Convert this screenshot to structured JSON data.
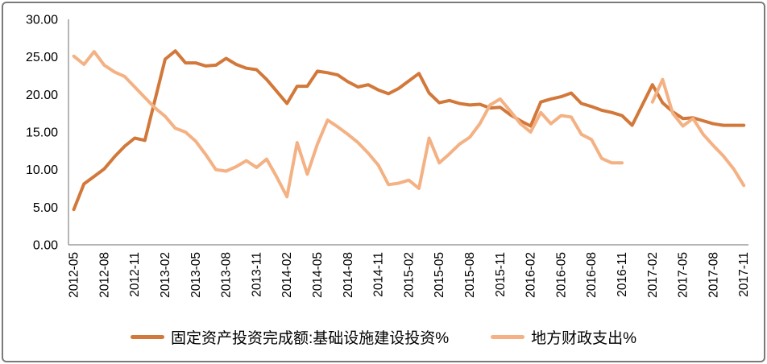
{
  "chart_data": {
    "type": "line",
    "title": "",
    "grid": false,
    "legend_position": "bottom",
    "ylim": [
      0,
      30
    ],
    "y_ticks": [
      "0.00",
      "5.00",
      "10.00",
      "15.00",
      "20.00",
      "25.00",
      "30.00"
    ],
    "x_tick_every": 3,
    "x": [
      "2012-05",
      "2012-06",
      "2012-07",
      "2012-08",
      "2012-09",
      "2012-10",
      "2012-11",
      "2012-12",
      "2013-01",
      "2013-02",
      "2013-03",
      "2013-04",
      "2013-05",
      "2013-06",
      "2013-07",
      "2013-08",
      "2013-09",
      "2013-10",
      "2013-11",
      "2013-12",
      "2014-01",
      "2014-02",
      "2014-03",
      "2014-04",
      "2014-05",
      "2014-06",
      "2014-07",
      "2014-08",
      "2014-09",
      "2014-10",
      "2014-11",
      "2014-12",
      "2015-01",
      "2015-02",
      "2015-03",
      "2015-04",
      "2015-05",
      "2015-06",
      "2015-07",
      "2015-08",
      "2015-09",
      "2015-10",
      "2015-11",
      "2015-12",
      "2016-01",
      "2016-02",
      "2016-03",
      "2016-04",
      "2016-05",
      "2016-06",
      "2016-07",
      "2016-08",
      "2016-09",
      "2016-10",
      "2016-11",
      "2016-12",
      "2017-01",
      "2017-02",
      "2017-03",
      "2017-04",
      "2017-05",
      "2017-06",
      "2017-07",
      "2017-08",
      "2017-09",
      "2017-10",
      "2017-11"
    ],
    "series": [
      {
        "name": "固定资产投资完成额:基础设施建设投资%",
        "color": "#D2783A",
        "values": [
          4.7,
          8.1,
          9.1,
          10.1,
          11.7,
          13.1,
          14.2,
          13.9,
          19.3,
          24.7,
          25.8,
          24.2,
          24.2,
          23.8,
          23.9,
          24.8,
          24.0,
          23.5,
          23.3,
          22.0,
          20.4,
          18.8,
          21.1,
          21.1,
          23.1,
          22.9,
          22.6,
          21.7,
          21.0,
          21.3,
          20.6,
          20.1,
          20.8,
          21.8,
          22.8,
          20.2,
          18.9,
          19.2,
          18.8,
          18.6,
          18.7,
          18.2,
          18.3,
          17.3,
          16.5,
          15.8,
          19.0,
          19.4,
          19.7,
          20.2,
          18.8,
          18.4,
          17.9,
          17.6,
          17.2,
          15.9,
          18.6,
          21.3,
          18.9,
          17.7,
          16.8,
          16.9,
          16.5,
          16.1,
          15.9,
          15.9,
          15.9
        ]
      },
      {
        "name": "地方财政支出%",
        "color": "#F4B183",
        "values": [
          25.1,
          24.0,
          25.7,
          23.9,
          23.0,
          22.4,
          21.0,
          19.6,
          18.2,
          17.1,
          15.5,
          15.0,
          13.8,
          12.0,
          10.0,
          9.8,
          10.4,
          11.2,
          10.3,
          11.4,
          9.0,
          6.4,
          13.6,
          9.4,
          13.4,
          16.6,
          15.7,
          14.7,
          13.6,
          12.2,
          10.6,
          8.0,
          8.2,
          8.6,
          7.5,
          14.2,
          10.9,
          12.1,
          13.4,
          14.3,
          16.1,
          18.6,
          19.4,
          17.8,
          16.1,
          15.0,
          17.6,
          16.1,
          17.2,
          17.0,
          14.7,
          14.0,
          11.5,
          10.9,
          10.9,
          null,
          null,
          19.0,
          22.0,
          17.5,
          15.8,
          16.8,
          14.7,
          13.2,
          11.8,
          10.1,
          7.9
        ]
      }
    ]
  }
}
